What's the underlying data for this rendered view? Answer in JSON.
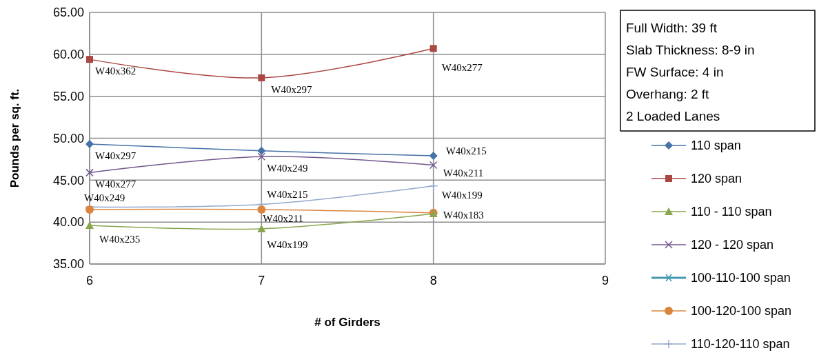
{
  "chart_data": {
    "type": "line",
    "xlabel": "# of Girders",
    "ylabel": "Pounds per sq. ft.",
    "x": [
      6,
      7,
      8
    ],
    "xlim": [
      6,
      9
    ],
    "xticks": [
      6,
      7,
      8,
      9
    ],
    "ylim": [
      35,
      65
    ],
    "yticks": [
      {
        "value": 35,
        "label": "35.00"
      },
      {
        "value": 40,
        "label": "40.00"
      },
      {
        "value": 45,
        "label": "45.00"
      },
      {
        "value": 50,
        "label": "50.00"
      },
      {
        "value": 55,
        "label": "55.00"
      },
      {
        "value": 60,
        "label": "60.00"
      },
      {
        "value": 65,
        "label": "65.00"
      }
    ],
    "grid": true,
    "legend": "right",
    "series": [
      {
        "name": "110 span",
        "color": "#4572a7",
        "marker": "diamond",
        "values": [
          49.3,
          48.5,
          47.9
        ]
      },
      {
        "name": "120 span",
        "color": "#aa4643",
        "marker": "square",
        "values": [
          59.4,
          57.2,
          60.7
        ]
      },
      {
        "name": "110 - 110 span",
        "color": "#89a54e",
        "marker": "triangle",
        "values": [
          39.6,
          39.2,
          41.0
        ]
      },
      {
        "name": "120 - 120 span",
        "color": "#71588f",
        "marker": "cross",
        "values": [
          45.9,
          47.8,
          46.8
        ]
      },
      {
        "name": "100-110-100 span",
        "color": "#4198af",
        "marker": "star",
        "values": [
          null,
          null,
          null
        ]
      },
      {
        "name": "100-120-100 span",
        "color": "#db843d",
        "marker": "circle",
        "values": [
          41.5,
          41.5,
          41.1
        ]
      },
      {
        "name": "110-120-110 span",
        "color": "#93a9cf",
        "marker": "plus",
        "values": [
          41.8,
          42.1,
          44.3
        ]
      }
    ],
    "annotations": [
      {
        "text": "W40x362",
        "x": 6,
        "y": 59.4
      },
      {
        "text": "W40x297",
        "x": 6,
        "y": 49.3
      },
      {
        "text": "W40x277",
        "x": 6,
        "y": 45.9
      },
      {
        "text": "W40x249",
        "x": 6,
        "y": 41.8
      },
      {
        "text": "W40x235",
        "x": 6,
        "y": 39.6
      },
      {
        "text": "W40x297",
        "x": 7,
        "y": 57.2
      },
      {
        "text": "W40x249",
        "x": 7,
        "y": 47.8
      },
      {
        "text": "W40x215",
        "x": 7,
        "y": 42.1
      },
      {
        "text": "W40x211",
        "x": 7,
        "y": 41.5
      },
      {
        "text": "W40x199",
        "x": 7,
        "y": 39.2
      },
      {
        "text": "W40x277",
        "x": 8,
        "y": 60.7
      },
      {
        "text": "W40x215",
        "x": 8,
        "y": 47.9
      },
      {
        "text": "W40x211",
        "x": 8,
        "y": 46.8
      },
      {
        "text": "W40x199",
        "x": 8,
        "y": 44.3
      },
      {
        "text": "W40x183",
        "x": 8,
        "y": 41.1
      },
      "Full Width: 39 ft",
      "Slab Thickness: 8-9 in",
      "FW Surface: 4 in",
      "Overhang: 2 ft",
      "2 Loaded Lanes"
    ]
  }
}
